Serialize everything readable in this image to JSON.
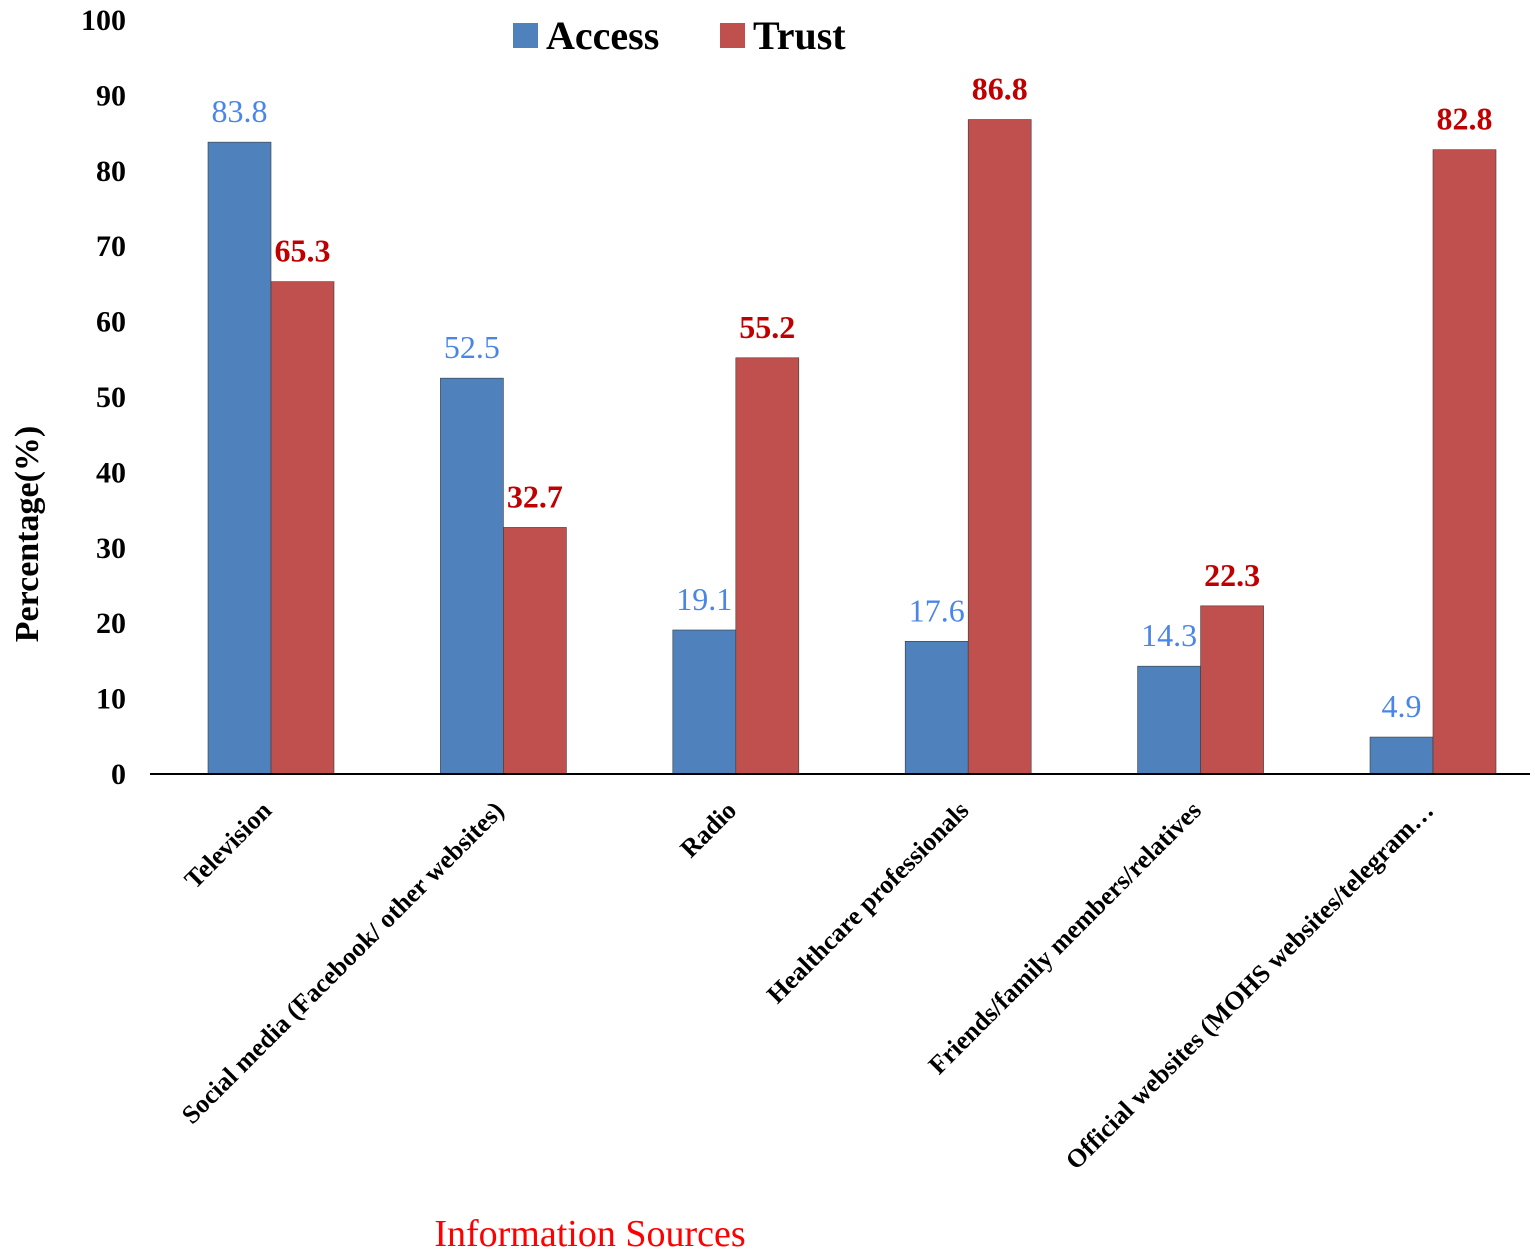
{
  "chart_data": {
    "type": "bar",
    "categories": [
      "Television",
      "Social media (Facebook/ other websites)",
      "Radio",
      "Healthcare professionals",
      "Friends/family members/relatives",
      "Official websites (MOHS websites/telegram…"
    ],
    "series": [
      {
        "name": "Access",
        "values": [
          83.8,
          52.5,
          19.1,
          17.6,
          14.3,
          4.9
        ],
        "color": "#4F81BD",
        "label_color": "#4A86E8"
      },
      {
        "name": "Trust",
        "values": [
          65.3,
          32.7,
          55.2,
          86.8,
          22.3,
          82.8
        ],
        "color": "#C0504D",
        "label_color": "#C00000"
      }
    ],
    "data_labels": {
      "Access": [
        "83.8",
        "52.5",
        "19.1",
        "17.6",
        "14.3",
        "4.9"
      ],
      "Trust": [
        "65.3",
        "32.7",
        "55.2",
        "86.8",
        "22.3",
        "82.8"
      ]
    },
    "title": "",
    "xlabel": "Information Sources",
    "xlabel_color": "#FF0000",
    "ylabel": "Percentage(%)",
    "ylim": [
      0,
      100
    ],
    "yticks": [
      0,
      10,
      20,
      30,
      40,
      50,
      60,
      70,
      80,
      90,
      100
    ],
    "grid": false,
    "legend": {
      "position": "top-center",
      "entries": [
        "Access",
        "Trust"
      ]
    }
  }
}
